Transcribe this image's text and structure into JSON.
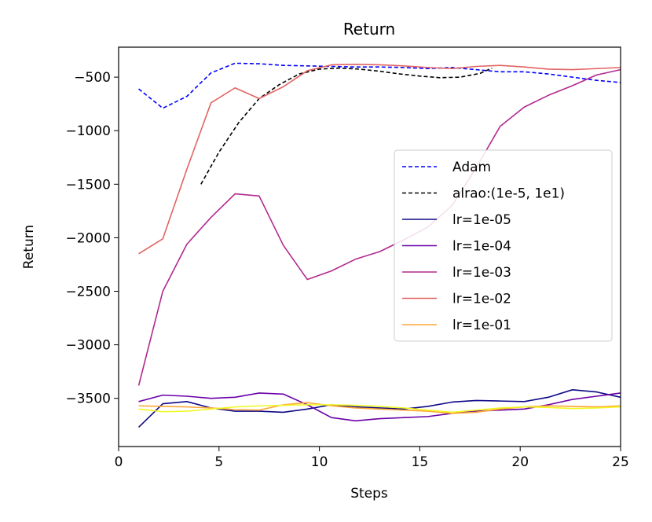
{
  "chart_data": {
    "type": "line",
    "title": "Return",
    "xlabel": "Steps",
    "ylabel": "Return",
    "xlim": [
      0,
      25
    ],
    "ylim": [
      -3950,
      -220
    ],
    "xticks": [
      0,
      5,
      10,
      15,
      20,
      25
    ],
    "yticks": [
      -3500,
      -3000,
      -2500,
      -2000,
      -1500,
      -1000,
      -500
    ],
    "grid": false,
    "legend_position": "center-right",
    "series": [
      {
        "name": "Adam",
        "color": "#0000ff",
        "dash": "dashed",
        "x": [
          1,
          2.2,
          3.4,
          4.6,
          5.8,
          7,
          8.2,
          9.4,
          10.6,
          11.8,
          13,
          14.2,
          15.4,
          16.6,
          17.8,
          19,
          20.2,
          21.4,
          22.6,
          23.8,
          25
        ],
        "y": [
          -610,
          -790,
          -680,
          -460,
          -370,
          -375,
          -390,
          -395,
          -400,
          -405,
          -405,
          -410,
          -420,
          -410,
          -430,
          -450,
          -450,
          -470,
          -500,
          -530,
          -550
        ]
      },
      {
        "name": "alrao:(1e-5, 1e1)",
        "color": "#000000",
        "dash": "dashed",
        "x": [
          4.1,
          5,
          6,
          7,
          8,
          9,
          10,
          11,
          12,
          13,
          14,
          15,
          16,
          17,
          18,
          18.6
        ],
        "y": [
          -1500,
          -1200,
          -920,
          -700,
          -570,
          -470,
          -425,
          -415,
          -425,
          -445,
          -470,
          -490,
          -505,
          -500,
          -465,
          -415
        ]
      },
      {
        "name": "lr=1e-05",
        "color": "#0d0887",
        "dash": "solid",
        "x": [
          1,
          2.2,
          3.4,
          4.6,
          5.8,
          7,
          8.2,
          9.4,
          10.6,
          11.8,
          13,
          14.2,
          15.4,
          16.6,
          17.8,
          19,
          20.2,
          21.4,
          22.6,
          23.8,
          25
        ],
        "y": [
          -3770,
          -3550,
          -3530,
          -3590,
          -3620,
          -3620,
          -3630,
          -3600,
          -3560,
          -3580,
          -3590,
          -3600,
          -3575,
          -3535,
          -3520,
          -3525,
          -3530,
          -3490,
          -3420,
          -3440,
          -3490
        ]
      },
      {
        "name": "lr=1e-04",
        "color": "#6a00a8",
        "dash": "solid",
        "x": [
          1,
          2.2,
          3.4,
          4.6,
          5.8,
          7,
          8.2,
          9.4,
          10.6,
          11.8,
          13,
          14.2,
          15.4,
          16.6,
          17.8,
          19,
          20.2,
          21.4,
          22.6,
          23.8,
          25
        ],
        "y": [
          -3530,
          -3470,
          -3480,
          -3500,
          -3490,
          -3450,
          -3460,
          -3560,
          -3680,
          -3710,
          -3690,
          -3680,
          -3670,
          -3640,
          -3620,
          -3610,
          -3600,
          -3560,
          -3510,
          -3480,
          -3450
        ]
      },
      {
        "name": "lr=1e-03",
        "color": "#b12a90",
        "dash": "solid",
        "x": [
          1,
          2.2,
          3.4,
          4.6,
          5.8,
          7,
          8.2,
          9.4,
          10.6,
          11.8,
          13,
          14.2,
          15.4,
          16.6,
          17.8,
          19,
          20.2,
          21.4,
          22.6,
          23.8,
          25
        ],
        "y": [
          -3380,
          -2500,
          -2060,
          -1810,
          -1590,
          -1610,
          -2070,
          -2390,
          -2310,
          -2200,
          -2130,
          -2020,
          -1900,
          -1700,
          -1350,
          -960,
          -780,
          -670,
          -580,
          -480,
          -430
        ]
      },
      {
        "name": "lr=1e-02",
        "color": "#e16462",
        "dash": "solid",
        "x": [
          1,
          2.2,
          3.4,
          4.6,
          5.8,
          7,
          8.2,
          9.4,
          10.6,
          11.8,
          13,
          14.2,
          15.4,
          16.6,
          17.8,
          19,
          20.2,
          21.4,
          22.6,
          23.8,
          25
        ],
        "y": [
          -2150,
          -2010,
          -1360,
          -740,
          -600,
          -700,
          -590,
          -440,
          -385,
          -380,
          -385,
          -395,
          -410,
          -420,
          -400,
          -390,
          -405,
          -425,
          -430,
          -420,
          -410
        ]
      },
      {
        "name": "lr=1e-01",
        "color": "#fca636",
        "dash": "solid",
        "x": [
          1,
          2.2,
          3.4,
          4.6,
          5.8,
          7,
          8.2,
          9.4,
          10.6,
          11.8,
          13,
          14.2,
          15.4,
          16.6,
          17.8,
          19,
          20.2,
          21.4,
          22.6,
          23.8,
          25
        ],
        "y": [
          -3570,
          -3575,
          -3580,
          -3590,
          -3605,
          -3610,
          -3560,
          -3540,
          -3570,
          -3590,
          -3600,
          -3610,
          -3620,
          -3640,
          -3630,
          -3600,
          -3580,
          -3570,
          -3575,
          -3580,
          -3570
        ]
      },
      {
        "name": "",
        "color": "#f0f921",
        "dash": "solid",
        "x": [
          1,
          2.2,
          3.4,
          4.6,
          5.8,
          7,
          8.2,
          9.4,
          10.6,
          11.8,
          13,
          14.2,
          15.4,
          16.6,
          17.8,
          19,
          20.2,
          21.4,
          22.6,
          23.8,
          25
        ],
        "y": [
          -3600,
          -3625,
          -3620,
          -3600,
          -3580,
          -3570,
          -3565,
          -3560,
          -3560,
          -3565,
          -3575,
          -3590,
          -3610,
          -3630,
          -3610,
          -3590,
          -3580,
          -3585,
          -3595,
          -3590,
          -3580
        ]
      }
    ]
  }
}
